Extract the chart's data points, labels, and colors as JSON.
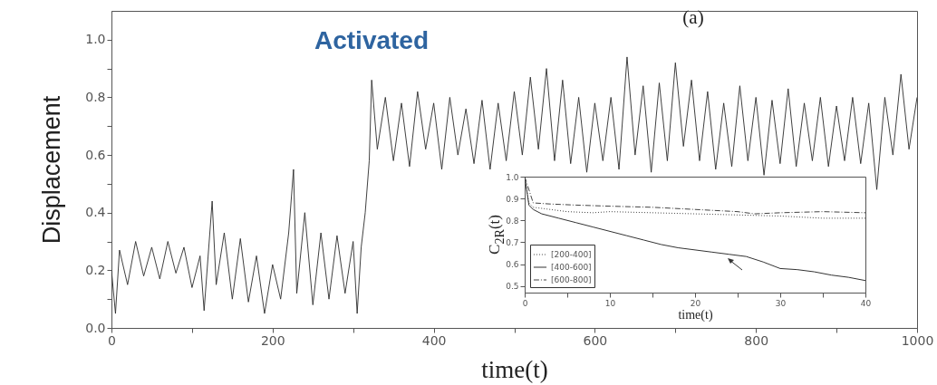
{
  "chart_data": [
    {
      "type": "line",
      "xlabel": "time(t)",
      "ylabel": "Displacement",
      "annotations": [
        "Activated",
        "(a)"
      ],
      "xlim": [
        0,
        1000
      ],
      "ylim": [
        0,
        1.1
      ],
      "xticks": [
        0,
        {
          "value": 100,
          "label": null
        },
        200,
        {
          "value": 300,
          "label": null
        },
        400,
        {
          "value": 500,
          "label": null
        },
        600,
        {
          "value": 700,
          "label": null
        },
        800,
        {
          "value": 900,
          "label": null
        },
        1000
      ],
      "yticks": [
        {
          "value": 0,
          "label": "0.0"
        },
        {
          "value": 0.1,
          "label": null
        },
        {
          "value": 0.2,
          "label": "0.2"
        },
        {
          "value": 0.3,
          "label": null
        },
        {
          "value": 0.4,
          "label": "0.4"
        },
        {
          "value": 0.5,
          "label": null
        },
        {
          "value": 0.6,
          "label": "0.6"
        },
        {
          "value": 0.7,
          "label": null
        },
        {
          "value": 0.8,
          "label": "0.8"
        },
        {
          "value": 0.9,
          "label": null
        },
        {
          "value": 1,
          "label": "1.0"
        }
      ],
      "series": [
        {
          "color": "#2b2b2b",
          "x": [
            0,
            5,
            10,
            20,
            30,
            40,
            50,
            60,
            70,
            80,
            90,
            100,
            110,
            115,
            125,
            130,
            140,
            150,
            160,
            170,
            180,
            190,
            200,
            210,
            220,
            226,
            230,
            240,
            250,
            260,
            270,
            280,
            290,
            300,
            305,
            310,
            315,
            320,
            323,
            330,
            340,
            350,
            360,
            370,
            380,
            390,
            400,
            410,
            420,
            430,
            440,
            450,
            460,
            470,
            480,
            490,
            500,
            510,
            520,
            530,
            540,
            550,
            560,
            570,
            580,
            590,
            600,
            610,
            620,
            630,
            640,
            650,
            660,
            670,
            680,
            690,
            700,
            710,
            720,
            730,
            740,
            750,
            760,
            770,
            780,
            790,
            800,
            810,
            820,
            830,
            840,
            850,
            860,
            870,
            880,
            890,
            900,
            910,
            920,
            930,
            940,
            950,
            960,
            970,
            980,
            990,
            1000
          ],
          "values": [
            0.2,
            0.05,
            0.27,
            0.15,
            0.3,
            0.18,
            0.28,
            0.17,
            0.3,
            0.19,
            0.28,
            0.14,
            0.25,
            0.06,
            0.44,
            0.15,
            0.33,
            0.1,
            0.31,
            0.09,
            0.25,
            0.05,
            0.22,
            0.1,
            0.33,
            0.55,
            0.12,
            0.4,
            0.08,
            0.33,
            0.1,
            0.32,
            0.12,
            0.3,
            0.05,
            0.28,
            0.4,
            0.58,
            0.86,
            0.62,
            0.8,
            0.58,
            0.78,
            0.56,
            0.82,
            0.62,
            0.78,
            0.55,
            0.8,
            0.6,
            0.76,
            0.57,
            0.79,
            0.55,
            0.78,
            0.58,
            0.82,
            0.6,
            0.87,
            0.62,
            0.9,
            0.58,
            0.86,
            0.57,
            0.8,
            0.54,
            0.78,
            0.58,
            0.8,
            0.55,
            0.94,
            0.6,
            0.84,
            0.54,
            0.85,
            0.58,
            0.92,
            0.63,
            0.86,
            0.58,
            0.82,
            0.55,
            0.78,
            0.56,
            0.84,
            0.58,
            0.8,
            0.53,
            0.79,
            0.57,
            0.83,
            0.56,
            0.78,
            0.58,
            0.8,
            0.56,
            0.77,
            0.58,
            0.8,
            0.57,
            0.78,
            0.48,
            0.8,
            0.6,
            0.88,
            0.62,
            0.8
          ]
        }
      ]
    },
    {
      "type": "line",
      "xlabel": "time(t)",
      "ylabel": "C$_{2R}$(t)",
      "legend": "bottom left",
      "xlim": [
        0,
        40
      ],
      "ylim": [
        0.47,
        1
      ],
      "xticks": [
        0,
        {
          "value": 5,
          "label": null
        },
        10,
        {
          "value": 15,
          "label": null
        },
        20,
        {
          "value": 25,
          "label": null
        },
        30,
        {
          "value": 35,
          "label": null
        },
        40
      ],
      "yticks": [
        {
          "value": 0.5,
          "label": "0.5"
        },
        {
          "value": 0.6,
          "label": "0.6"
        },
        {
          "value": 0.7,
          "label": "0.7"
        },
        {
          "value": 0.8,
          "label": "0.8"
        },
        {
          "value": 0.9,
          "label": "0.9"
        },
        {
          "value": 1,
          "label": "1.0"
        }
      ],
      "series": [
        {
          "name": "[200-400]",
          "color": "#444444",
          "line_style": "dotted",
          "x": [
            0,
            0.5,
            1,
            3,
            5,
            8,
            10,
            15,
            20,
            25,
            30,
            35,
            40
          ],
          "values": [
            1,
            0.88,
            0.86,
            0.85,
            0.84,
            0.835,
            0.84,
            0.835,
            0.83,
            0.825,
            0.82,
            0.81,
            0.81
          ]
        },
        {
          "name": "[400-600]",
          "color": "#333333",
          "line_style": "solid",
          "x": [
            0,
            0.5,
            1,
            2,
            4,
            6,
            8,
            10,
            12,
            14,
            16,
            18,
            20,
            22,
            24,
            26,
            28,
            30,
            32,
            34,
            36,
            38,
            40
          ],
          "values": [
            1,
            0.87,
            0.85,
            0.83,
            0.81,
            0.79,
            0.77,
            0.75,
            0.73,
            0.71,
            0.69,
            0.675,
            0.665,
            0.655,
            0.645,
            0.635,
            0.61,
            0.58,
            0.575,
            0.565,
            0.55,
            0.54,
            0.525
          ]
        },
        {
          "name": "[600-800]",
          "color": "#444444",
          "line_style": "dashed",
          "x": [
            0,
            1,
            3,
            6,
            10,
            15,
            20,
            25,
            27,
            30,
            35,
            40
          ],
          "values": [
            1,
            0.88,
            0.875,
            0.87,
            0.865,
            0.86,
            0.85,
            0.84,
            0.83,
            0.835,
            0.84,
            0.835
          ]
        }
      ]
    }
  ]
}
